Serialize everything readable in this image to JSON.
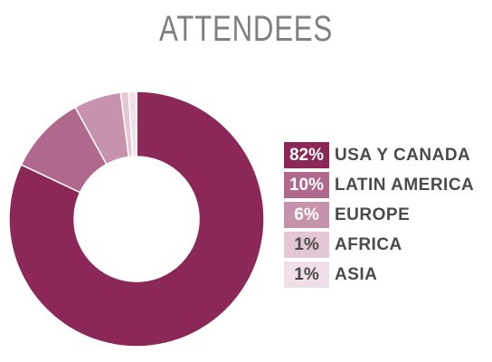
{
  "title": "ATTENDEES",
  "chart_data": {
    "type": "pie",
    "title": "ATTENDEES",
    "categories": [
      "USA Y CANADA",
      "LATIN AMERICA",
      "EUROPE",
      "AFRICA",
      "ASIA"
    ],
    "values": [
      82,
      10,
      6,
      1,
      1
    ],
    "value_labels": [
      "82%",
      "10%",
      "6%",
      "1%",
      "1%"
    ],
    "colors": [
      "#8b2858",
      "#b0688c",
      "#c792ab",
      "#e3c7d5",
      "#f0dfe8"
    ],
    "label_colors": [
      "#ffffff",
      "#ffffff",
      "#ffffff",
      "#4a4a4a",
      "#4a4a4a"
    ],
    "donut": true,
    "legend_position": "right"
  }
}
